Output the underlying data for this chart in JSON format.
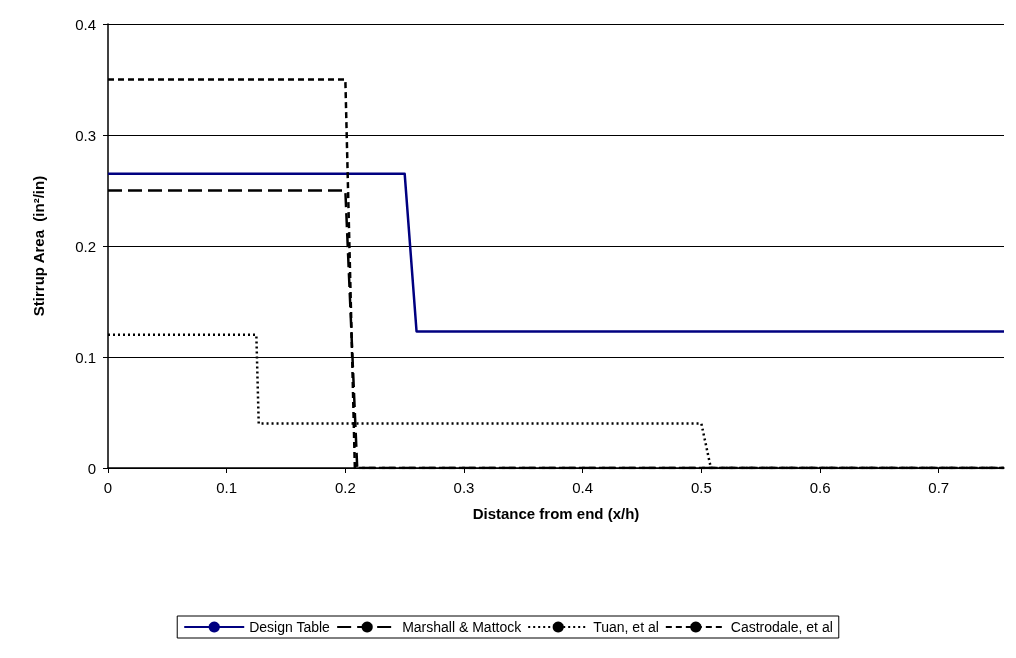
{
  "chart_data": {
    "type": "line",
    "xlabel": "Distance from end (x/h)",
    "ylabel": "Stirrup Area  (in²/in)",
    "xlim": [
      0,
      0.755
    ],
    "xticks": [
      0,
      0.1,
      0.2,
      0.3,
      0.4,
      0.5,
      0.6,
      0.7
    ],
    "ylim": [
      0,
      0.4
    ],
    "yticks": [
      0,
      0.1,
      0.2,
      0.3,
      0.4
    ],
    "grid": "y",
    "legend": "bottom",
    "marker": "none",
    "series": [
      {
        "name": "Design Table",
        "color": "#000080",
        "line_style": "solid",
        "x": [
          0,
          0.25,
          0.26,
          0.755
        ],
        "values": [
          0.265,
          0.265,
          0.123,
          0.123
        ]
      },
      {
        "name": "Marshall & Mattock",
        "color": "#000000",
        "line_style": "dashed",
        "x": [
          0,
          0.2,
          0.21,
          0.755
        ],
        "values": [
          0.25,
          0.25,
          0,
          0
        ]
      },
      {
        "name": "Tuan, et al",
        "color": "#000000",
        "line_style": "dotted",
        "x": [
          0,
          0.125,
          0.127,
          0.5,
          0.508,
          0.755
        ],
        "values": [
          0.12,
          0.12,
          0.04,
          0.04,
          0,
          0
        ]
      },
      {
        "name": "Castrodale, et al",
        "color": "#000000",
        "line_style": "dashed",
        "x": [
          0,
          0.2,
          0.208,
          0.755
        ],
        "values": [
          0.35,
          0.35,
          0,
          0
        ]
      }
    ]
  }
}
